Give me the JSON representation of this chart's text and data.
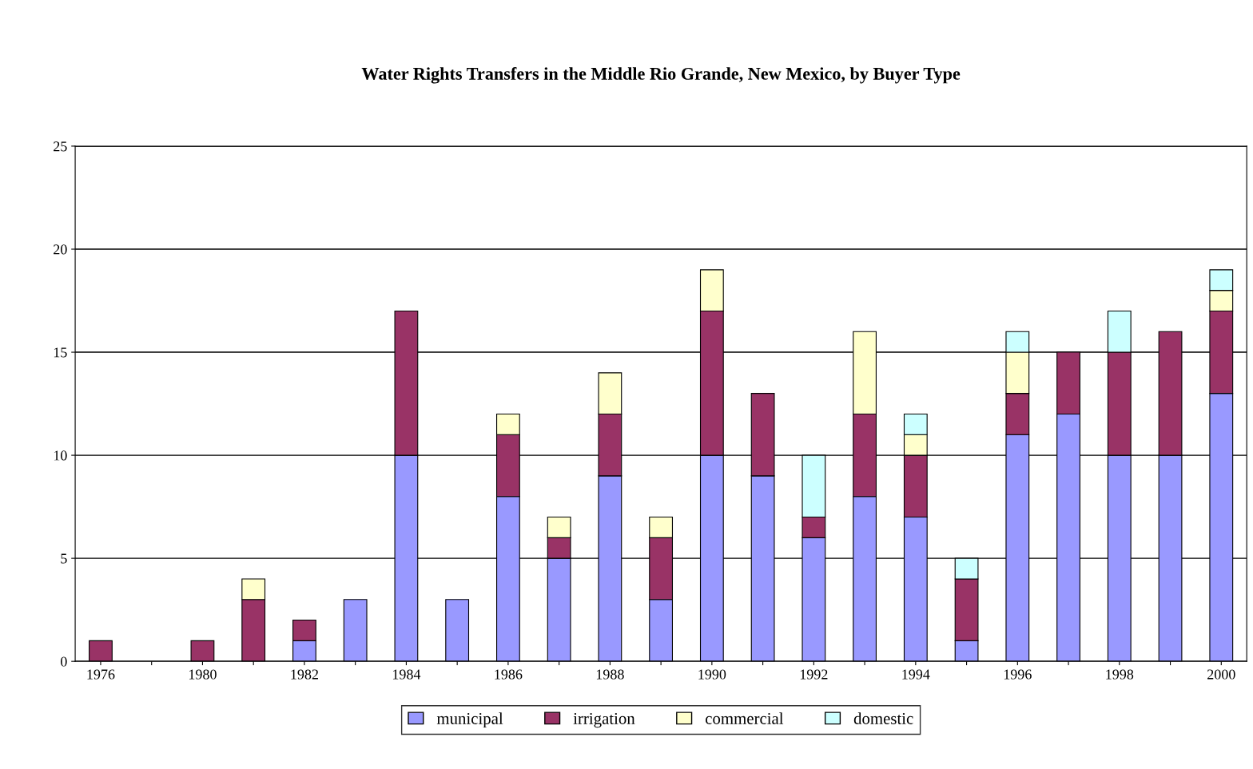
{
  "chart_data": {
    "type": "bar",
    "title": "Water Rights Transfers in the Middle Rio Grande, New Mexico, by Buyer Type",
    "categories": [
      "1976",
      null,
      "1980",
      null,
      "1982",
      null,
      "1984",
      null,
      "1986",
      null,
      "1988",
      null,
      "1990",
      null,
      "1992",
      null,
      "1994",
      null,
      "1996",
      null,
      "1998",
      null,
      "2000"
    ],
    "stacked": true,
    "series": [
      {
        "name": "municipal",
        "color": "#9999ff",
        "values": [
          0,
          0,
          0,
          0,
          1,
          3,
          10,
          3,
          8,
          5,
          9,
          3,
          10,
          9,
          6,
          8,
          7,
          1,
          11,
          12,
          10,
          10,
          13
        ]
      },
      {
        "name": "irrigation",
        "color": "#993366",
        "values": [
          1,
          0,
          1,
          3,
          1,
          0,
          7,
          0,
          3,
          1,
          3,
          3,
          7,
          4,
          1,
          4,
          3,
          3,
          2,
          3,
          5,
          6,
          4
        ]
      },
      {
        "name": "commercial",
        "color": "#ffffcc",
        "values": [
          0,
          0,
          0,
          1,
          0,
          0,
          0,
          0,
          1,
          1,
          2,
          1,
          2,
          0,
          0,
          4,
          1,
          0,
          2,
          0,
          0,
          0,
          1
        ]
      },
      {
        "name": "domestic",
        "color": "#ccffff",
        "values": [
          0,
          0,
          0,
          0,
          0,
          0,
          0,
          0,
          0,
          0,
          0,
          0,
          0,
          0,
          3,
          0,
          1,
          1,
          1,
          0,
          2,
          0,
          1
        ]
      }
    ],
    "ylim": [
      0,
      25
    ],
    "yticks": [
      0,
      5,
      10,
      15,
      20,
      25
    ],
    "grid": "y",
    "legend": "bottom"
  }
}
